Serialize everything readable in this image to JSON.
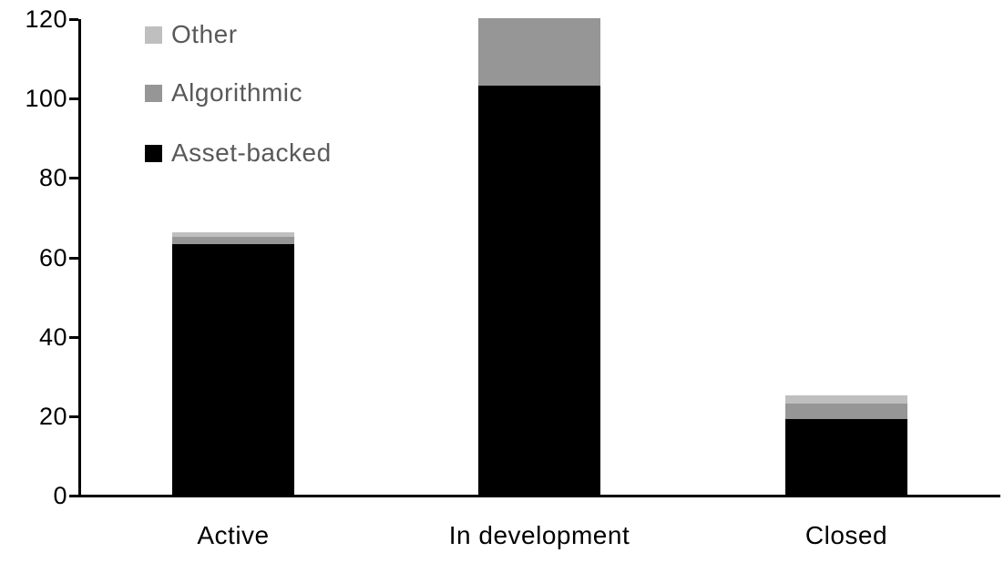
{
  "chart_data": {
    "type": "bar",
    "stacked": true,
    "title": "",
    "xlabel": "",
    "ylabel": "",
    "categories": [
      "Active",
      "In development",
      "Closed"
    ],
    "series": [
      {
        "name": "Asset-backed",
        "color": "#000000",
        "values": [
          63,
          103,
          19
        ]
      },
      {
        "name": "Algorithmic",
        "color": "#969696",
        "values": [
          2,
          17,
          4
        ]
      },
      {
        "name": "Other",
        "color": "#bfbfbf",
        "values": [
          1,
          0,
          2
        ]
      }
    ],
    "totals": [
      66,
      120,
      25
    ],
    "ylim": [
      0,
      120
    ],
    "yticks": [
      0,
      20,
      40,
      60,
      80,
      100,
      120
    ],
    "grid": false,
    "legend_position": "top-left",
    "legend_order": [
      "Other",
      "Algorithmic",
      "Asset-backed"
    ]
  },
  "colors": {
    "background": "#ffffff",
    "axis": "#000000",
    "tick_label": "#000000",
    "legend_text": "#595959"
  }
}
